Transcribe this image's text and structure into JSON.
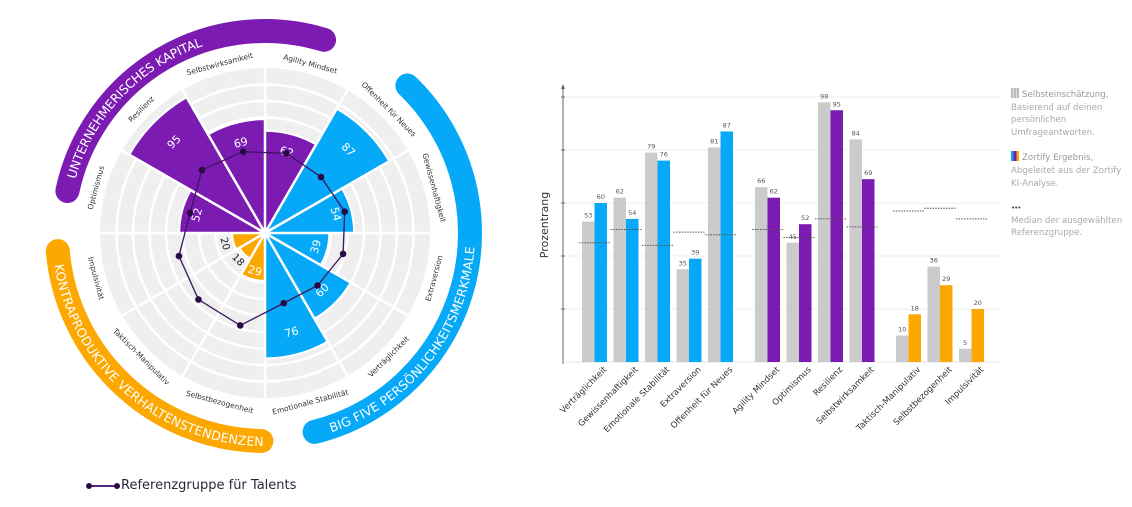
{
  "colors": {
    "big_five": "#06a9f7",
    "entrepreneurial": "#7b1bb1",
    "counterproductive": "#fca800",
    "self_assessment": "#cbcbcb",
    "reference": "#2a0a45",
    "radar_background": "#efefef"
  },
  "radar": {
    "groups": [
      {
        "label": "UNTERNEHMERISCHES KAPITAL",
        "color": "#7b1bb1"
      },
      {
        "label": "BIG FIVE PERSÖNLICHKEITSMERKMALE",
        "color": "#06a9f7"
      },
      {
        "label": "KONTRAPRODUKTIVE VERHALTENSTENDENZEN",
        "color": "#fca800"
      }
    ],
    "sectors": [
      {
        "label": "Agility Mindset",
        "value": 62,
        "reference": 50,
        "group": 0
      },
      {
        "label": "Offenheit für Neues",
        "value": 87,
        "reference": 48,
        "group": 1
      },
      {
        "label": "Gewissenhaftigkeit",
        "value": 54,
        "reference": 50,
        "group": 1
      },
      {
        "label": "Extraversion",
        "value": 39,
        "reference": 49,
        "group": 1
      },
      {
        "label": "Verträglichkeit",
        "value": 60,
        "reference": 45,
        "group": 1
      },
      {
        "label": "Emotionale Stabilität",
        "value": 76,
        "reference": 44,
        "group": 1
      },
      {
        "label": "Selbstbezogenheit",
        "value": 29,
        "reference": 58,
        "group": 2
      },
      {
        "label": "Taktisch-Manipulativ",
        "value": 18,
        "reference": 57,
        "group": 2
      },
      {
        "label": "Impulsivität",
        "value": 20,
        "reference": 54,
        "group": 2
      },
      {
        "label": "Optimismus",
        "value": 52,
        "reference": 47,
        "group": 0
      },
      {
        "label": "Resilienz",
        "value": 95,
        "reference": 54,
        "group": 0
      },
      {
        "label": "Selbstwirksamkeit",
        "value": 69,
        "reference": 51,
        "group": 0
      }
    ],
    "range": [
      0,
      100
    ],
    "legend": "Referenzgruppe für Talents"
  },
  "chart_data": {
    "type": "bar",
    "ylabel": "Prozentrang",
    "ylim": [
      0,
      100
    ],
    "grid": true,
    "legend_position": "right",
    "categories": [
      "Verträglichkeit",
      "Gewissenhaftigkeit",
      "Emotionale Stabilität",
      "Extraversion",
      "Offenheit für Neues",
      "Agility Mindset",
      "Optimismus",
      "Resilienz",
      "Selbstwirksamkeit",
      "Taktisch-Manipulativ",
      "Selbstbezogenheit",
      "Impulsivität"
    ],
    "category_groups": [
      1,
      1,
      1,
      1,
      1,
      0,
      0,
      0,
      0,
      2,
      2,
      2
    ],
    "series": [
      {
        "name": "Selbsteinschätzung",
        "values": [
          53,
          62,
          79,
          35,
          81,
          66,
          45,
          98,
          84,
          10,
          36,
          5
        ]
      },
      {
        "name": "Zortify Ergebnis",
        "values": [
          60,
          54,
          76,
          39,
          87,
          62,
          52,
          95,
          69,
          18,
          29,
          20
        ]
      },
      {
        "name": "Median",
        "values": [
          45,
          50,
          44,
          49,
          48,
          50,
          47,
          54,
          51,
          57,
          58,
          54
        ]
      }
    ]
  },
  "legend": {
    "self": {
      "title": "Selbsteinschätzung,",
      "text": "Basierend auf deinen persönlichen Umfrageantworten."
    },
    "zortify": {
      "title": "Zortify Ergebnis,",
      "text": "Abgeleitet aus der Zortify KI-Analyse."
    },
    "median": {
      "title": "•••",
      "text": "Median der ausgewählten Referenzgruppe."
    }
  }
}
